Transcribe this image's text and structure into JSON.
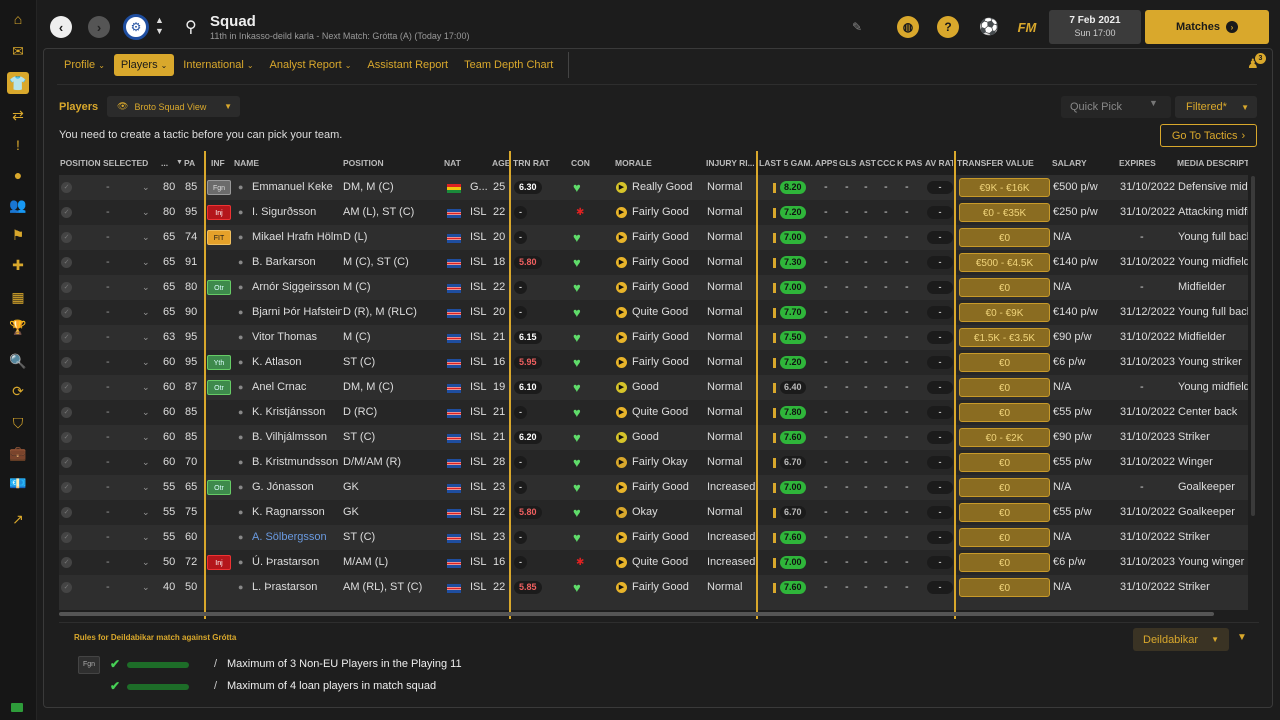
{
  "header": {
    "title": "Squad",
    "subtitle": "11th in Inkasso-deild karla - Next Match: Grótta (A) (Today 17:00)",
    "date_line1": "7 Feb 2021",
    "date_line2": "Sun 17:00",
    "matches_label": "Matches",
    "fm_label": "FM",
    "notifications": "3"
  },
  "tabs": [
    {
      "label": "Profile",
      "has_dropdown": true
    },
    {
      "label": "Players",
      "has_dropdown": true,
      "active": true
    },
    {
      "label": "International",
      "has_dropdown": true
    },
    {
      "label": "Analyst Report",
      "has_dropdown": true
    },
    {
      "label": "Assistant Report",
      "has_dropdown": false
    },
    {
      "label": "Team Depth Chart",
      "has_dropdown": false
    }
  ],
  "panel": {
    "title": "Players",
    "view": "Broto Squad View",
    "quick_pick": "Quick Pick",
    "filter": "Filtered*",
    "tactic_message": "You need to create a tactic before you can pick your team.",
    "go_to_tactics": "Go To Tactics"
  },
  "columns": {
    "position_selected": "POSITION SELECTED",
    "ca": "...",
    "pa": "PA",
    "inf": "INF",
    "name": "NAME",
    "position": "POSITION",
    "nat": "NAT",
    "age": "AGE",
    "trn_rat": "TRN RAT",
    "con": "CON",
    "morale": "MORALE",
    "injury": "INJURY RI...",
    "last5": "LAST 5 GAM...",
    "apps": "APPS",
    "gls": "GLS",
    "ast": "AST",
    "ccc": "CCC",
    "kpas": "K PAS",
    "avrat": "AV RAT",
    "transfer_value": "TRANSFER VALUE",
    "salary": "SALARY",
    "expires": "EXPIRES",
    "media": "MEDIA DESCRIPTION"
  },
  "players": [
    {
      "selected": "-",
      "ca": "80",
      "pa": "85",
      "inf": "Fgn",
      "name": "Emmanuel Keke",
      "position": "DM, M (C)",
      "nat": "G...",
      "age": "25",
      "trn": "6.30",
      "con": "heart",
      "morale": "Really Good",
      "injury": "Normal",
      "last5": "8.20",
      "apps": "-",
      "gls": "-",
      "ast": "-",
      "ccc": "-",
      "kpas": "-",
      "avrat": "-",
      "tv": "€9K - €16K",
      "salary": "€500 p/w",
      "expires": "31/10/2022",
      "media": "Defensive midfielder"
    },
    {
      "selected": "-",
      "ca": "80",
      "pa": "95",
      "inf": "Inj",
      "name": "I. Sigurðsson",
      "position": "AM (L), ST (C)",
      "nat": "ISL",
      "age": "22",
      "trn": "-",
      "con": "injured",
      "morale": "Fairly Good",
      "injury": "Normal",
      "last5": "7.20",
      "apps": "-",
      "gls": "-",
      "ast": "-",
      "ccc": "-",
      "kpas": "-",
      "avrat": "-",
      "tv": "€0 - €35K",
      "salary": "€250 p/w",
      "expires": "31/10/2022",
      "media": "Attacking midfielder"
    },
    {
      "selected": "-",
      "ca": "65",
      "pa": "74",
      "inf": "FIT",
      "name": "Mikael Hrafn Hölm",
      "position": "D (L)",
      "nat": "ISL",
      "age": "20",
      "trn": "-",
      "con": "heart",
      "morale": "Fairly Good",
      "injury": "Normal",
      "last5": "7.00",
      "apps": "-",
      "gls": "-",
      "ast": "-",
      "ccc": "-",
      "kpas": "-",
      "avrat": "-",
      "tv": "€0",
      "salary": "N/A",
      "expires": "-",
      "media": "Young full back"
    },
    {
      "selected": "-",
      "ca": "65",
      "pa": "91",
      "inf": "",
      "name": "B. Barkarson",
      "position": "M (C), ST (C)",
      "nat": "ISL",
      "age": "18",
      "trn": "5.80",
      "con": "heart",
      "morale": "Fairly Good",
      "injury": "Normal",
      "last5": "7.30",
      "apps": "-",
      "gls": "-",
      "ast": "-",
      "ccc": "-",
      "kpas": "-",
      "avrat": "-",
      "tv": "€500 - €4.5K",
      "salary": "€140 p/w",
      "expires": "31/10/2022",
      "media": "Young midfielder"
    },
    {
      "selected": "-",
      "ca": "65",
      "pa": "80",
      "inf": "Otr",
      "name": "Arnór Siggeirsson",
      "position": "M (C)",
      "nat": "ISL",
      "age": "22",
      "trn": "-",
      "con": "heart",
      "morale": "Fairly Good",
      "injury": "Normal",
      "last5": "7.00",
      "apps": "-",
      "gls": "-",
      "ast": "-",
      "ccc": "-",
      "kpas": "-",
      "avrat": "-",
      "tv": "€0",
      "salary": "N/A",
      "expires": "-",
      "media": "Midfielder"
    },
    {
      "selected": "-",
      "ca": "65",
      "pa": "90",
      "inf": "",
      "name": "Bjarni Þór Hafstein",
      "position": "D (R), M (RLC)",
      "nat": "ISL",
      "age": "20",
      "trn": "-",
      "con": "heart",
      "morale": "Quite Good",
      "injury": "Normal",
      "last5": "7.70",
      "apps": "-",
      "gls": "-",
      "ast": "-",
      "ccc": "-",
      "kpas": "-",
      "avrat": "-",
      "tv": "€0 - €9K",
      "salary": "€140 p/w",
      "expires": "31/12/2022",
      "media": "Young full back"
    },
    {
      "selected": "-",
      "ca": "63",
      "pa": "95",
      "inf": "",
      "name": "Vitor Thomas",
      "position": "M (C)",
      "nat": "ISL",
      "age": "21",
      "trn": "6.15",
      "con": "heart",
      "morale": "Fairly Good",
      "injury": "Normal",
      "last5": "7.50",
      "apps": "-",
      "gls": "-",
      "ast": "-",
      "ccc": "-",
      "kpas": "-",
      "avrat": "-",
      "tv": "€1.5K - €3.5K",
      "salary": "€90 p/w",
      "expires": "31/10/2022",
      "media": "Midfielder"
    },
    {
      "selected": "-",
      "ca": "60",
      "pa": "95",
      "inf": "Yth",
      "name": "K. Atlason",
      "position": "ST (C)",
      "nat": "ISL",
      "age": "16",
      "trn": "5.95",
      "con": "heart",
      "morale": "Fairly Good",
      "injury": "Normal",
      "last5": "7.20",
      "apps": "-",
      "gls": "-",
      "ast": "-",
      "ccc": "-",
      "kpas": "-",
      "avrat": "-",
      "tv": "€0",
      "salary": "€6 p/w",
      "expires": "31/10/2023",
      "media": "Young striker"
    },
    {
      "selected": "-",
      "ca": "60",
      "pa": "87",
      "inf": "Otr",
      "name": "Anel Crnac",
      "position": "DM, M (C)",
      "nat": "ISL",
      "age": "19",
      "trn": "6.10",
      "con": "heart",
      "morale": "Good",
      "injury": "Normal",
      "last5": "6.40",
      "apps": "-",
      "gls": "-",
      "ast": "-",
      "ccc": "-",
      "kpas": "-",
      "avrat": "-",
      "tv": "€0",
      "salary": "N/A",
      "expires": "-",
      "media": "Young midfielder"
    },
    {
      "selected": "-",
      "ca": "60",
      "pa": "85",
      "inf": "",
      "name": "K. Kristjánsson",
      "position": "D (RC)",
      "nat": "ISL",
      "age": "21",
      "trn": "-",
      "con": "heart",
      "morale": "Quite Good",
      "injury": "Normal",
      "last5": "7.80",
      "apps": "-",
      "gls": "-",
      "ast": "-",
      "ccc": "-",
      "kpas": "-",
      "avrat": "-",
      "tv": "€0",
      "salary": "€55 p/w",
      "expires": "31/10/2022",
      "media": "Center back"
    },
    {
      "selected": "-",
      "ca": "60",
      "pa": "85",
      "inf": "",
      "name": "B. Vilhjálmsson",
      "position": "ST (C)",
      "nat": "ISL",
      "age": "21",
      "trn": "6.20",
      "con": "heart",
      "morale": "Good",
      "injury": "Normal",
      "last5": "7.60",
      "apps": "-",
      "gls": "-",
      "ast": "-",
      "ccc": "-",
      "kpas": "-",
      "avrat": "-",
      "tv": "€0 - €2K",
      "salary": "€90 p/w",
      "expires": "31/10/2023",
      "media": "Striker"
    },
    {
      "selected": "-",
      "ca": "60",
      "pa": "70",
      "inf": "",
      "name": "B. Kristmundsson",
      "position": "D/M/AM (R)",
      "nat": "ISL",
      "age": "28",
      "trn": "-",
      "con": "heart",
      "morale": "Fairly Okay",
      "injury": "Normal",
      "last5": "6.70",
      "apps": "-",
      "gls": "-",
      "ast": "-",
      "ccc": "-",
      "kpas": "-",
      "avrat": "-",
      "tv": "€0",
      "salary": "€55 p/w",
      "expires": "31/10/2022",
      "media": "Winger"
    },
    {
      "selected": "-",
      "ca": "55",
      "pa": "65",
      "inf": "Otr",
      "name": "G. Jónasson",
      "position": "GK",
      "nat": "ISL",
      "age": "23",
      "trn": "-",
      "con": "heart",
      "morale": "Fairly Good",
      "injury": "Increased",
      "last5": "7.00",
      "apps": "-",
      "gls": "-",
      "ast": "-",
      "ccc": "-",
      "kpas": "-",
      "avrat": "-",
      "tv": "€0",
      "salary": "N/A",
      "expires": "-",
      "media": "Goalkeeper"
    },
    {
      "selected": "-",
      "ca": "55",
      "pa": "75",
      "inf": "",
      "name": "K. Ragnarsson",
      "position": "GK",
      "nat": "ISL",
      "age": "22",
      "trn": "5.80",
      "con": "heart",
      "morale": "Okay",
      "injury": "Normal",
      "last5": "6.70",
      "apps": "-",
      "gls": "-",
      "ast": "-",
      "ccc": "-",
      "kpas": "-",
      "avrat": "-",
      "tv": "€0",
      "salary": "€55 p/w",
      "expires": "31/10/2022",
      "media": "Goalkeeper"
    },
    {
      "selected": "-",
      "ca": "55",
      "pa": "60",
      "inf": "",
      "name": "A. Sölbergsson",
      "position": "ST (C)",
      "nat": "ISL",
      "age": "23",
      "trn": "-",
      "con": "heart",
      "morale": "Fairly Good",
      "injury": "Increased",
      "last5": "7.60",
      "apps": "-",
      "gls": "-",
      "ast": "-",
      "ccc": "-",
      "kpas": "-",
      "avrat": "-",
      "tv": "€0",
      "salary": "N/A",
      "expires": "31/10/2022",
      "media": "Striker"
    },
    {
      "selected": "-",
      "ca": "50",
      "pa": "72",
      "inf": "Inj",
      "name": "Ú. Þrastarson",
      "position": "M/AM (L)",
      "nat": "ISL",
      "age": "16",
      "trn": "-",
      "con": "injured",
      "morale": "Quite Good",
      "injury": "Increased",
      "last5": "7.00",
      "apps": "-",
      "gls": "-",
      "ast": "-",
      "ccc": "-",
      "kpas": "-",
      "avrat": "-",
      "tv": "€0",
      "salary": "€6 p/w",
      "expires": "31/10/2023",
      "media": "Young winger"
    },
    {
      "selected": "-",
      "ca": "40",
      "pa": "50",
      "inf": "",
      "name": "L. Þrastarson",
      "position": "AM (RL), ST (C)",
      "nat": "ISL",
      "age": "22",
      "trn": "5.85",
      "con": "heart",
      "morale": "Fairly Good",
      "injury": "Normal",
      "last5": "7.60",
      "apps": "-",
      "gls": "-",
      "ast": "-",
      "ccc": "-",
      "kpas": "-",
      "avrat": "-",
      "tv": "€0",
      "salary": "N/A",
      "expires": "31/10/2022",
      "media": "Striker"
    }
  ],
  "rules": {
    "title": "Rules for Deildabikar match against Grótta",
    "competition": "Deildabikar",
    "items": [
      {
        "badge": "Fgn",
        "text": "Maximum of 3 Non-EU Players in the Playing 11"
      },
      {
        "badge": "",
        "text": "Maximum of 4 loan players in match squad"
      }
    ]
  },
  "colors": {
    "accent": "#d9a82c",
    "rating_high": "#2fb53a",
    "rating_low": "#e05050"
  }
}
